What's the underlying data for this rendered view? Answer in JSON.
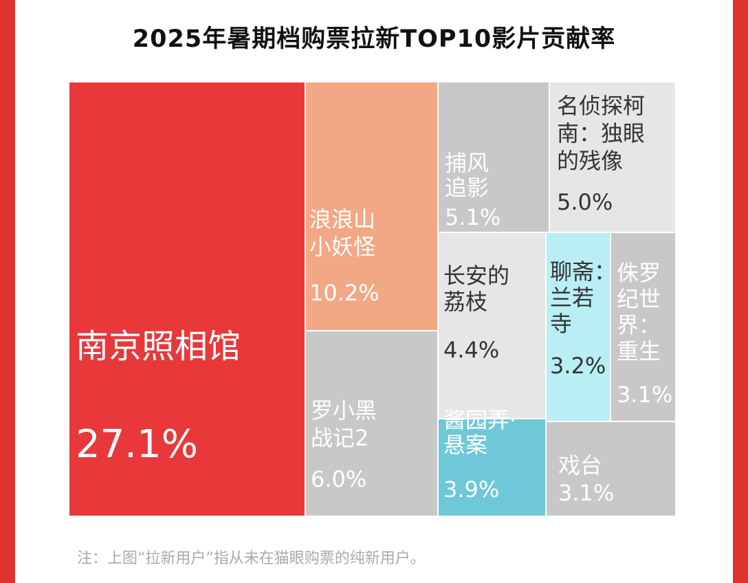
{
  "title": "2025年暑期档购票拉新TOP10影片贡献率",
  "note": "注：上图“拉新用户”指从未在猫眼购票的纯新用户。",
  "colors": {
    "frame": "#e0342f",
    "highlight_red": "#e8383a",
    "salmon": "#f2a885",
    "gray": "#c8c8c8",
    "light_gray": "#e6e6e6",
    "teal": "#6ec8d8",
    "light_cyan": "#b9eef4"
  },
  "chart_data": {
    "type": "treemap",
    "title": "2025年暑期档购票拉新TOP10影片贡献率",
    "unit": "%",
    "items": [
      {
        "name": "南京照相馆",
        "label_lines": [
          "南京照相馆"
        ],
        "value": 27.1,
        "value_label": "27.1%",
        "color": "#e8383a",
        "text_color": "#ffffff"
      },
      {
        "name": "浪浪山小妖怪",
        "label_lines": [
          "浪浪山",
          "小妖怪"
        ],
        "value": 10.2,
        "value_label": "10.2%",
        "color": "#f2a885",
        "text_color": "#ffffff"
      },
      {
        "name": "罗小黑战记2",
        "label_lines": [
          "罗小黑",
          "战记2"
        ],
        "value": 6.0,
        "value_label": "6.0%",
        "color": "#c8c8c8",
        "text_color": "#ffffff"
      },
      {
        "name": "捕风追影",
        "label_lines": [
          "捕风",
          "追影"
        ],
        "value": 5.1,
        "value_label": "5.1%",
        "color": "#c8c8c8",
        "text_color": "#ffffff"
      },
      {
        "name": "名侦探柯南：独眼的残像",
        "label_lines": [
          "名侦探柯",
          "南：独眼",
          "的残像"
        ],
        "value": 5.0,
        "value_label": "5.0%",
        "color": "#e6e6e6",
        "text_color": "#333333"
      },
      {
        "name": "长安的荔枝",
        "label_lines": [
          "长安的",
          "荔枝"
        ],
        "value": 4.4,
        "value_label": "4.4%",
        "color": "#e6e6e6",
        "text_color": "#333333"
      },
      {
        "name": "酱园弄·悬案",
        "label_lines": [
          "酱园弄·",
          "悬案"
        ],
        "value": 3.9,
        "value_label": "3.9%",
        "color": "#6ec8d8",
        "text_color": "#ffffff"
      },
      {
        "name": "聊斋：兰若寺",
        "label_lines": [
          "聊斋：",
          "兰若",
          "寺"
        ],
        "value": 3.2,
        "value_label": "3.2%",
        "color": "#b9eef4",
        "text_color": "#333333"
      },
      {
        "name": "侏罗纪世界：重生",
        "label_lines": [
          "侏罗",
          "纪世",
          "界：",
          "重生"
        ],
        "value": 3.1,
        "value_label": "3.1%",
        "color": "#c8c8c8",
        "text_color": "#ffffff"
      },
      {
        "name": "戏台",
        "label_lines": [
          "戏台"
        ],
        "value": 3.1,
        "value_label": "3.1%",
        "color": "#c8c8c8",
        "text_color": "#ffffff"
      }
    ]
  }
}
